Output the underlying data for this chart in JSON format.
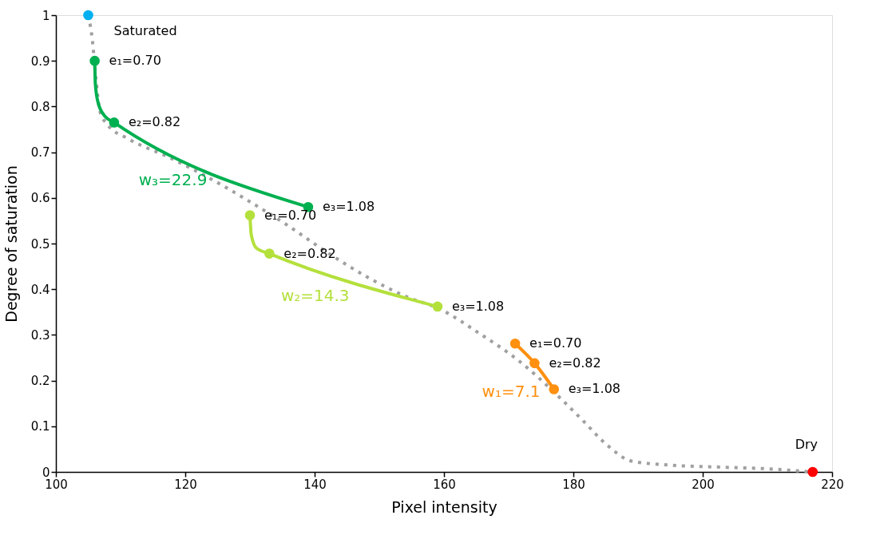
{
  "chart_data": {
    "type": "line",
    "xlabel": "Pixel intensity",
    "ylabel": "Degree of saturation",
    "xlim": [
      100,
      220
    ],
    "xticks": [
      100,
      120,
      140,
      160,
      180,
      200,
      220
    ],
    "ylim": [
      0,
      1
    ],
    "yticks": [
      {
        "value": 0,
        "label": "0"
      },
      0.1,
      0.2,
      0.3,
      0.4,
      0.5,
      0.6,
      0.7,
      0.8,
      0.9,
      {
        "value": 1,
        "label": "1"
      }
    ],
    "grid": false,
    "series": [
      {
        "line_style": "dotted",
        "marker": "none",
        "color": "#a0a0a0",
        "x": [
          105,
          105.6,
          106.2,
          106.8,
          108.0,
          111.1,
          117.3,
          123.5,
          129.6,
          135.8,
          142.0,
          148.1,
          154.3,
          159.3,
          165.4,
          171.6,
          177.8,
          181.5,
          185.2,
          188.9,
          193.8,
          203.7,
          209.9,
          216.7
        ],
        "values": [
          1.0,
          0.95,
          0.86,
          0.79,
          0.76,
          0.73,
          0.69,
          0.645,
          0.595,
          0.54,
          0.48,
          0.427,
          0.383,
          0.357,
          0.304,
          0.243,
          0.164,
          0.112,
          0.059,
          0.024,
          0.016,
          0.01,
          0.007,
          0
        ]
      },
      {
        "name": "w₃=22.9",
        "line_style": "solid",
        "marker": "none",
        "color": "#00b050",
        "x": [
          106,
          106.1,
          106.5,
          107.5,
          109,
          139
        ],
        "values": [
          0.9,
          0.85,
          0.81,
          0.78,
          0.765,
          0.58
        ]
      },
      {
        "type": "scatter",
        "marker": "circle",
        "color": "#00b050",
        "x": [
          106,
          109,
          139
        ],
        "values": [
          0.9,
          0.765,
          0.58
        ]
      },
      {
        "name": "w₂=14.3",
        "line_style": "solid",
        "marker": "none",
        "color": "#b4e03c",
        "x": [
          130,
          130.2,
          131,
          133,
          159
        ],
        "values": [
          0.562,
          0.52,
          0.49,
          0.478,
          0.362
        ]
      },
      {
        "type": "scatter",
        "marker": "circle",
        "color": "#b4e03c",
        "x": [
          130,
          133,
          159
        ],
        "values": [
          0.562,
          0.478,
          0.362
        ]
      },
      {
        "name": "w₁=7.1",
        "line_style": "solid",
        "marker": "none",
        "color": "#ff9010",
        "x": [
          171,
          174,
          177
        ],
        "values": [
          0.281,
          0.238,
          0.181
        ]
      },
      {
        "type": "scatter",
        "marker": "circle",
        "color": "#ff9010",
        "x": [
          171,
          174,
          177
        ],
        "values": [
          0.281,
          0.238,
          0.181
        ]
      },
      {
        "type": "scatter",
        "marker": "circle",
        "color": "#00b0f0",
        "x": [
          105
        ],
        "values": [
          1.0
        ]
      },
      {
        "type": "scatter",
        "marker": "circle",
        "color": "#ff0000",
        "x": [
          217
        ],
        "values": [
          0
        ]
      }
    ],
    "annotations": [
      {
        "text": "Saturated",
        "x": 105,
        "y": 1.0
      },
      {
        "text": "e₁=0.70",
        "x": 106,
        "y": 0.9
      },
      {
        "text": "e₂=0.82",
        "x": 109,
        "y": 0.765
      },
      {
        "text": "e₃=1.08",
        "x": 139,
        "y": 0.58
      },
      {
        "text": "e₁=0.70",
        "x": 130,
        "y": 0.562
      },
      {
        "text": "e₂=0.82",
        "x": 133,
        "y": 0.478
      },
      {
        "text": "e₃=1.08",
        "x": 159,
        "y": 0.362
      },
      {
        "text": "e₁=0.70",
        "x": 171,
        "y": 0.281
      },
      {
        "text": "e₂=0.82",
        "x": 174,
        "y": 0.238
      },
      {
        "text": "e₃=1.08",
        "x": 177,
        "y": 0.181
      },
      {
        "text": "Dry",
        "x": 217,
        "y": 0
      }
    ]
  }
}
